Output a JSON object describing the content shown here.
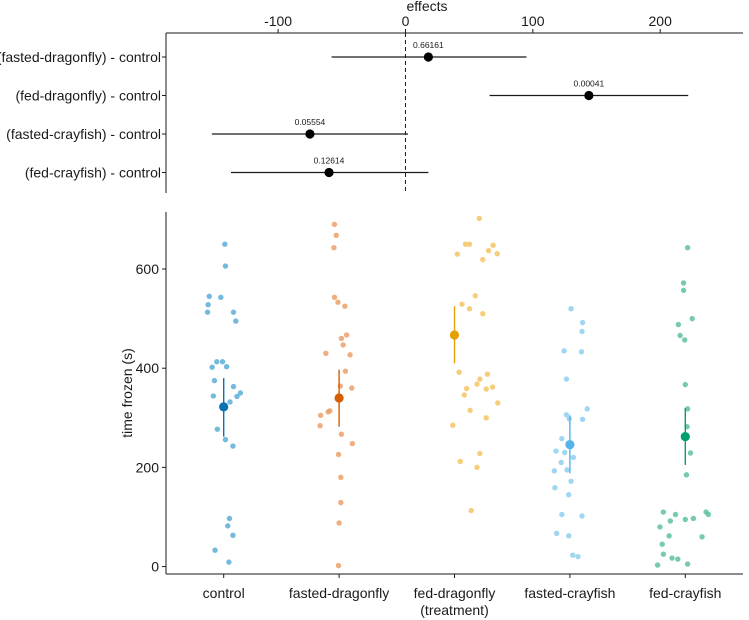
{
  "chart_data": [
    {
      "type": "forest",
      "xlabel": "effects",
      "xlim": [
        -188,
        265
      ],
      "xticks": [
        -100,
        0,
        100,
        200
      ],
      "xtick_labels": [
        "-100",
        "0",
        "100",
        "200"
      ],
      "reference_line": 0,
      "rows": [
        {
          "label": "(fasted-dragonfly) - control",
          "estimate": 18,
          "lower": -58,
          "upper": 95,
          "p_label": "0.66161"
        },
        {
          "label": "(fed-dragonfly) - control",
          "estimate": 144,
          "lower": 66,
          "upper": 222,
          "p_label": "0.00041"
        },
        {
          "label": "(fasted-crayfish) - control",
          "estimate": -75,
          "lower": -152,
          "upper": 2,
          "p_label": "0.05554"
        },
        {
          "label": "(fed-crayfish) - control",
          "estimate": -60,
          "lower": -137,
          "upper": 18,
          "p_label": "0.12614"
        }
      ]
    },
    {
      "type": "strip",
      "ylabel": "time frozen (s)",
      "ylim": [
        -15,
        715
      ],
      "yticks": [
        0,
        200,
        400,
        600
      ],
      "ytick_labels": [
        "0",
        "200",
        "400",
        "600"
      ],
      "categories": [
        "control",
        "fasted-dragonfly",
        "fed-dragonfly\n(treatment)",
        "fasted-crayfish",
        "fed-crayfish"
      ],
      "category_label_lines": [
        [
          "control"
        ],
        [
          "fasted-dragonfly"
        ],
        [
          "fed-dragonfly",
          "(treatment)"
        ],
        [
          "fasted-crayfish"
        ],
        [
          "fed-crayfish"
        ]
      ],
      "groups": [
        {
          "name": "control",
          "color": "#5aaed7",
          "mean_color": "#0a72b2",
          "mean": 322,
          "ci": [
            262,
            380
          ],
          "points": [
            {
              "x": -0.25,
              "y": 545
            },
            {
              "x": -0.27,
              "y": 528
            },
            {
              "x": -0.28,
              "y": 513
            },
            {
              "x": 0.02,
              "y": 650
            },
            {
              "x": 0.03,
              "y": 606
            },
            {
              "x": -0.05,
              "y": 543
            },
            {
              "x": 0.17,
              "y": 513
            },
            {
              "x": 0.21,
              "y": 495
            },
            {
              "x": -0.2,
              "y": 402
            },
            {
              "x": -0.12,
              "y": 413
            },
            {
              "x": -0.02,
              "y": 413
            },
            {
              "x": 0.05,
              "y": 403
            },
            {
              "x": -0.16,
              "y": 375
            },
            {
              "x": 0.17,
              "y": 363
            },
            {
              "x": 0.29,
              "y": 350
            },
            {
              "x": -0.18,
              "y": 344
            },
            {
              "x": 0.23,
              "y": 343
            },
            {
              "x": 0.11,
              "y": 332
            },
            {
              "x": 0.03,
              "y": 256
            },
            {
              "x": -0.11,
              "y": 277
            },
            {
              "x": 0.16,
              "y": 243
            },
            {
              "x": 0.1,
              "y": 97
            },
            {
              "x": 0.07,
              "y": 82
            },
            {
              "x": 0.16,
              "y": 63
            },
            {
              "x": -0.15,
              "y": 33
            },
            {
              "x": 0.09,
              "y": 9
            }
          ]
        },
        {
          "name": "fasted-dragonfly",
          "color": "#eba06a",
          "mean_color": "#d55e00",
          "mean": 340,
          "ci": [
            282,
            397
          ],
          "points": [
            {
              "x": -0.08,
              "y": 690
            },
            {
              "x": -0.05,
              "y": 668
            },
            {
              "x": -0.09,
              "y": 643
            },
            {
              "x": -0.08,
              "y": 543
            },
            {
              "x": -0.02,
              "y": 533
            },
            {
              "x": 0.1,
              "y": 525
            },
            {
              "x": 0.13,
              "y": 467
            },
            {
              "x": 0.04,
              "y": 460
            },
            {
              "x": 0.07,
              "y": 447
            },
            {
              "x": -0.23,
              "y": 430
            },
            {
              "x": 0.19,
              "y": 427
            },
            {
              "x": 0.11,
              "y": 394
            },
            {
              "x": 0.22,
              "y": 360
            },
            {
              "x": 0.02,
              "y": 364
            },
            {
              "x": -0.19,
              "y": 312
            },
            {
              "x": -0.16,
              "y": 314
            },
            {
              "x": -0.32,
              "y": 305
            },
            {
              "x": -0.33,
              "y": 284
            },
            {
              "x": 0.04,
              "y": 267
            },
            {
              "x": 0.23,
              "y": 248
            },
            {
              "x": -0.01,
              "y": 226
            },
            {
              "x": 0.03,
              "y": 180
            },
            {
              "x": 0.03,
              "y": 129
            },
            {
              "x": 0.0,
              "y": 88
            },
            {
              "x": -0.01,
              "y": 2
            }
          ]
        },
        {
          "name": "fed-dragonfly",
          "color": "#f4c564",
          "mean_color": "#e69f00",
          "mean": 467,
          "ci": [
            410,
            525
          ],
          "points": [
            {
              "x": 0.43,
              "y": 702
            },
            {
              "x": 0.19,
              "y": 650
            },
            {
              "x": 0.26,
              "y": 650
            },
            {
              "x": 0.67,
              "y": 648
            },
            {
              "x": 0.59,
              "y": 637
            },
            {
              "x": 0.74,
              "y": 631
            },
            {
              "x": 0.05,
              "y": 630
            },
            {
              "x": 0.49,
              "y": 619
            },
            {
              "x": 0.13,
              "y": 529
            },
            {
              "x": 0.36,
              "y": 546
            },
            {
              "x": 0.26,
              "y": 520
            },
            {
              "x": 0.49,
              "y": 510
            },
            {
              "x": 0.08,
              "y": 392
            },
            {
              "x": 0.57,
              "y": 388
            },
            {
              "x": 0.44,
              "y": 378
            },
            {
              "x": 0.39,
              "y": 368
            },
            {
              "x": 0.66,
              "y": 362
            },
            {
              "x": 0.21,
              "y": 359
            },
            {
              "x": 0.55,
              "y": 358
            },
            {
              "x": 0.75,
              "y": 330
            },
            {
              "x": 0.17,
              "y": 346
            },
            {
              "x": 0.27,
              "y": 315
            },
            {
              "x": -0.03,
              "y": 285
            },
            {
              "x": 0.55,
              "y": 300
            },
            {
              "x": 0.44,
              "y": 228
            },
            {
              "x": 0.1,
              "y": 212
            },
            {
              "x": 0.39,
              "y": 200
            },
            {
              "x": 0.29,
              "y": 113
            }
          ]
        },
        {
          "name": "fasted-crayfish",
          "color": "#8ecfef",
          "mean_color": "#56b4e9",
          "mean": 246,
          "ci": [
            188,
            305
          ],
          "points": [
            {
              "x": 0.02,
              "y": 520
            },
            {
              "x": 0.22,
              "y": 492
            },
            {
              "x": 0.21,
              "y": 474
            },
            {
              "x": 0.2,
              "y": 433
            },
            {
              "x": -0.1,
              "y": 435
            },
            {
              "x": -0.06,
              "y": 378
            },
            {
              "x": 0.3,
              "y": 318
            },
            {
              "x": -0.06,
              "y": 306
            },
            {
              "x": 0.22,
              "y": 297
            },
            {
              "x": -0.01,
              "y": 298
            },
            {
              "x": -0.14,
              "y": 258
            },
            {
              "x": -0.24,
              "y": 233
            },
            {
              "x": -0.09,
              "y": 230
            },
            {
              "x": 0.06,
              "y": 220
            },
            {
              "x": -0.15,
              "y": 210
            },
            {
              "x": -0.05,
              "y": 195
            },
            {
              "x": -0.27,
              "y": 193
            },
            {
              "x": 0.02,
              "y": 172
            },
            {
              "x": -0.26,
              "y": 159
            },
            {
              "x": -0.02,
              "y": 145
            },
            {
              "x": -0.14,
              "y": 105
            },
            {
              "x": 0.21,
              "y": 102
            },
            {
              "x": -0.23,
              "y": 67
            },
            {
              "x": -0.02,
              "y": 62
            },
            {
              "x": 0.05,
              "y": 23
            },
            {
              "x": 0.14,
              "y": 20
            }
          ]
        },
        {
          "name": "fed-crayfish",
          "color": "#5ec29e",
          "mean_color": "#009e73",
          "mean": 262,
          "ci": [
            205,
            320
          ],
          "points": [
            {
              "x": 0.04,
              "y": 643
            },
            {
              "x": -0.03,
              "y": 572
            },
            {
              "x": -0.03,
              "y": 557
            },
            {
              "x": 0.12,
              "y": 500
            },
            {
              "x": -0.12,
              "y": 488
            },
            {
              "x": -0.09,
              "y": 466
            },
            {
              "x": -0.01,
              "y": 457
            },
            {
              "x": 0.0,
              "y": 367
            },
            {
              "x": 0.04,
              "y": 318
            },
            {
              "x": 0.03,
              "y": 282
            },
            {
              "x": 0.09,
              "y": 229
            },
            {
              "x": 0.02,
              "y": 185
            },
            {
              "x": -0.38,
              "y": 110
            },
            {
              "x": 0.36,
              "y": 110
            },
            {
              "x": 0.4,
              "y": 105
            },
            {
              "x": 0.14,
              "y": 97
            },
            {
              "x": 0.0,
              "y": 95
            },
            {
              "x": -0.17,
              "y": 105
            },
            {
              "x": -0.26,
              "y": 92
            },
            {
              "x": -0.44,
              "y": 80
            },
            {
              "x": -0.28,
              "y": 62
            },
            {
              "x": 0.29,
              "y": 60
            },
            {
              "x": -0.4,
              "y": 45
            },
            {
              "x": -0.38,
              "y": 25
            },
            {
              "x": -0.13,
              "y": 15
            },
            {
              "x": -0.23,
              "y": 17
            },
            {
              "x": -0.48,
              "y": 3
            },
            {
              "x": 0.04,
              "y": 5
            }
          ]
        }
      ]
    }
  ]
}
